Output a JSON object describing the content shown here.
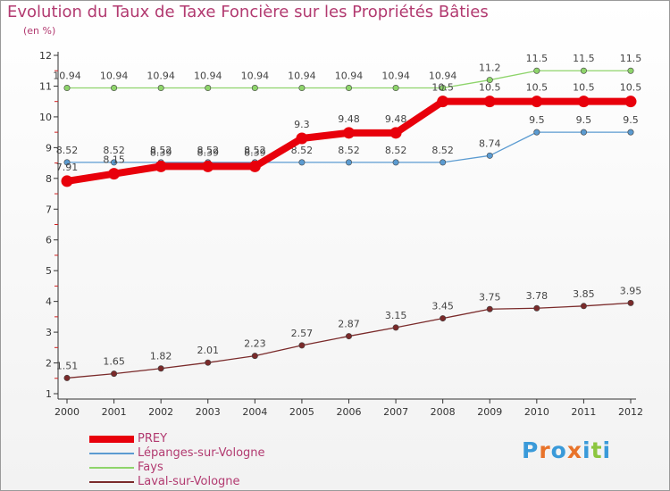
{
  "title": "Evolution du Taux de Taxe Foncière sur les Propriétés Bâties",
  "subtitle": "(en %)",
  "logo": {
    "text": "Proxiti",
    "colors": [
      "#3a9ad9",
      "#e8732a",
      "#3a9ad9",
      "#e8732a",
      "#3a9ad9",
      "#8cc63f",
      "#3a9ad9"
    ]
  },
  "chart_data": {
    "type": "line",
    "title": "Evolution du Taux de Taxe Foncière sur les Propriétés Bâties",
    "ylabel": "(en %)",
    "xlabel": "",
    "ylim": [
      1,
      12
    ],
    "yticks": [
      "1",
      "2",
      "3",
      "4",
      "5",
      "6",
      "7",
      "8",
      "9",
      "10",
      "11",
      "12"
    ],
    "grid": false,
    "legend_position": "bottom-left",
    "x": [
      "2000",
      "2001",
      "2002",
      "2003",
      "2004",
      "2005",
      "2006",
      "2007",
      "2008",
      "2009",
      "2010",
      "2011",
      "2012"
    ],
    "series": [
      {
        "name": "Fays",
        "color": "#8ed46b",
        "values": [
          10.94,
          10.94,
          10.94,
          10.94,
          10.94,
          10.94,
          10.94,
          10.94,
          10.94,
          11.2,
          11.5,
          11.5,
          11.5
        ],
        "labels": [
          "10.94",
          "10.94",
          "10.94",
          "10.94",
          "10.94",
          "10.94",
          "10.94",
          "10.94",
          "10.94",
          "11.2",
          "11.5",
          "11.5",
          "11.5"
        ]
      },
      {
        "name": "Lépanges-sur-Vologne",
        "color": "#5b9bd1",
        "values": [
          8.52,
          8.52,
          8.52,
          8.52,
          8.52,
          8.52,
          8.52,
          8.52,
          8.52,
          8.74,
          9.5,
          9.5,
          9.5
        ],
        "labels": [
          "8.52",
          "8.52",
          "8.52",
          "8.52",
          "8.52",
          "8.52",
          "8.52",
          "8.52",
          "8.52",
          "8.74",
          "9.5",
          "9.5",
          "9.5"
        ]
      },
      {
        "name": "Laval-sur-Vologne",
        "color": "#7a2a2a",
        "values": [
          1.51,
          1.65,
          1.82,
          2.01,
          2.23,
          2.57,
          2.87,
          3.15,
          3.45,
          3.75,
          3.78,
          3.85,
          3.95
        ],
        "labels": [
          "1.51",
          "1.65",
          "1.82",
          "2.01",
          "2.23",
          "2.57",
          "2.87",
          "3.15",
          "3.45",
          "3.75",
          "3.78",
          "3.85",
          "3.95"
        ]
      },
      {
        "name": "PREY",
        "color": "#e8000b",
        "values": [
          7.91,
          8.15,
          8.39,
          8.39,
          8.39,
          9.3,
          9.48,
          9.48,
          10.5,
          10.5,
          10.5,
          10.5,
          10.5
        ],
        "labels": [
          "7.91",
          "8.15",
          "8.39",
          "8.39",
          "8.39",
          "9.3",
          "9.48",
          "9.48",
          "10.5",
          "10.5",
          "10.5",
          "10.5",
          "10.5"
        ]
      }
    ],
    "legend": [
      {
        "name": "PREY",
        "color": "#e8000b"
      },
      {
        "name": "Lépanges-sur-Vologne",
        "color": "#5b9bd1"
      },
      {
        "name": "Fays",
        "color": "#8ed46b"
      },
      {
        "name": "Laval-sur-Vologne",
        "color": "#7a2a2a"
      }
    ]
  }
}
